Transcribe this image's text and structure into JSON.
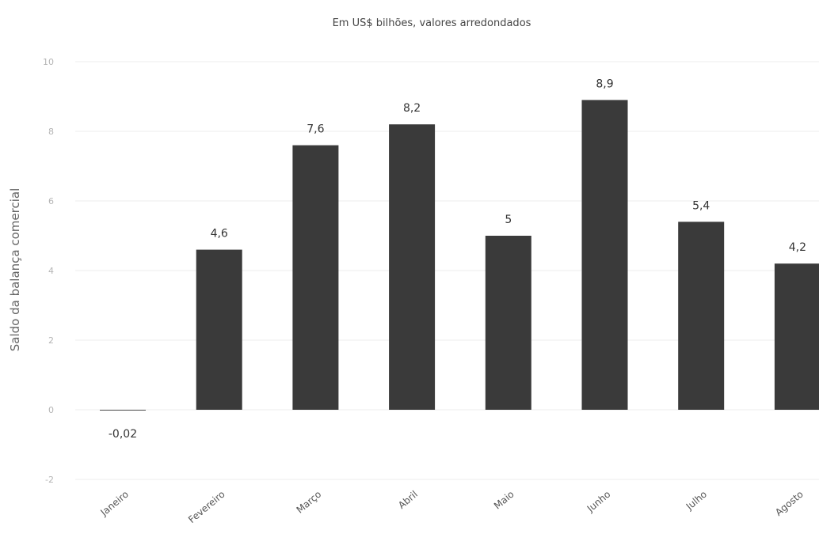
{
  "chart_data": {
    "type": "bar",
    "title": "",
    "subtitle": "Em US$ bilhões, valores arredondados",
    "xlabel": "",
    "ylabel": "Saldo da balança comercial",
    "categories": [
      "Janeiro",
      "Fevereiro",
      "Março",
      "Abril",
      "Maio",
      "Junho",
      "Julho",
      "Agosto"
    ],
    "values": [
      -0.02,
      4.6,
      7.6,
      8.2,
      5,
      8.9,
      5.4,
      4.2
    ],
    "data_labels": [
      "-0,02",
      "4,6",
      "7,6",
      "8,2",
      "5",
      "8,9",
      "5,4",
      "4,2"
    ],
    "ylim": [
      -2,
      10
    ],
    "yticks": [
      10,
      8,
      6,
      4,
      2,
      0,
      -2
    ],
    "grid": true,
    "legend": "none",
    "colors": {
      "bar": "#3a3a3a"
    }
  }
}
